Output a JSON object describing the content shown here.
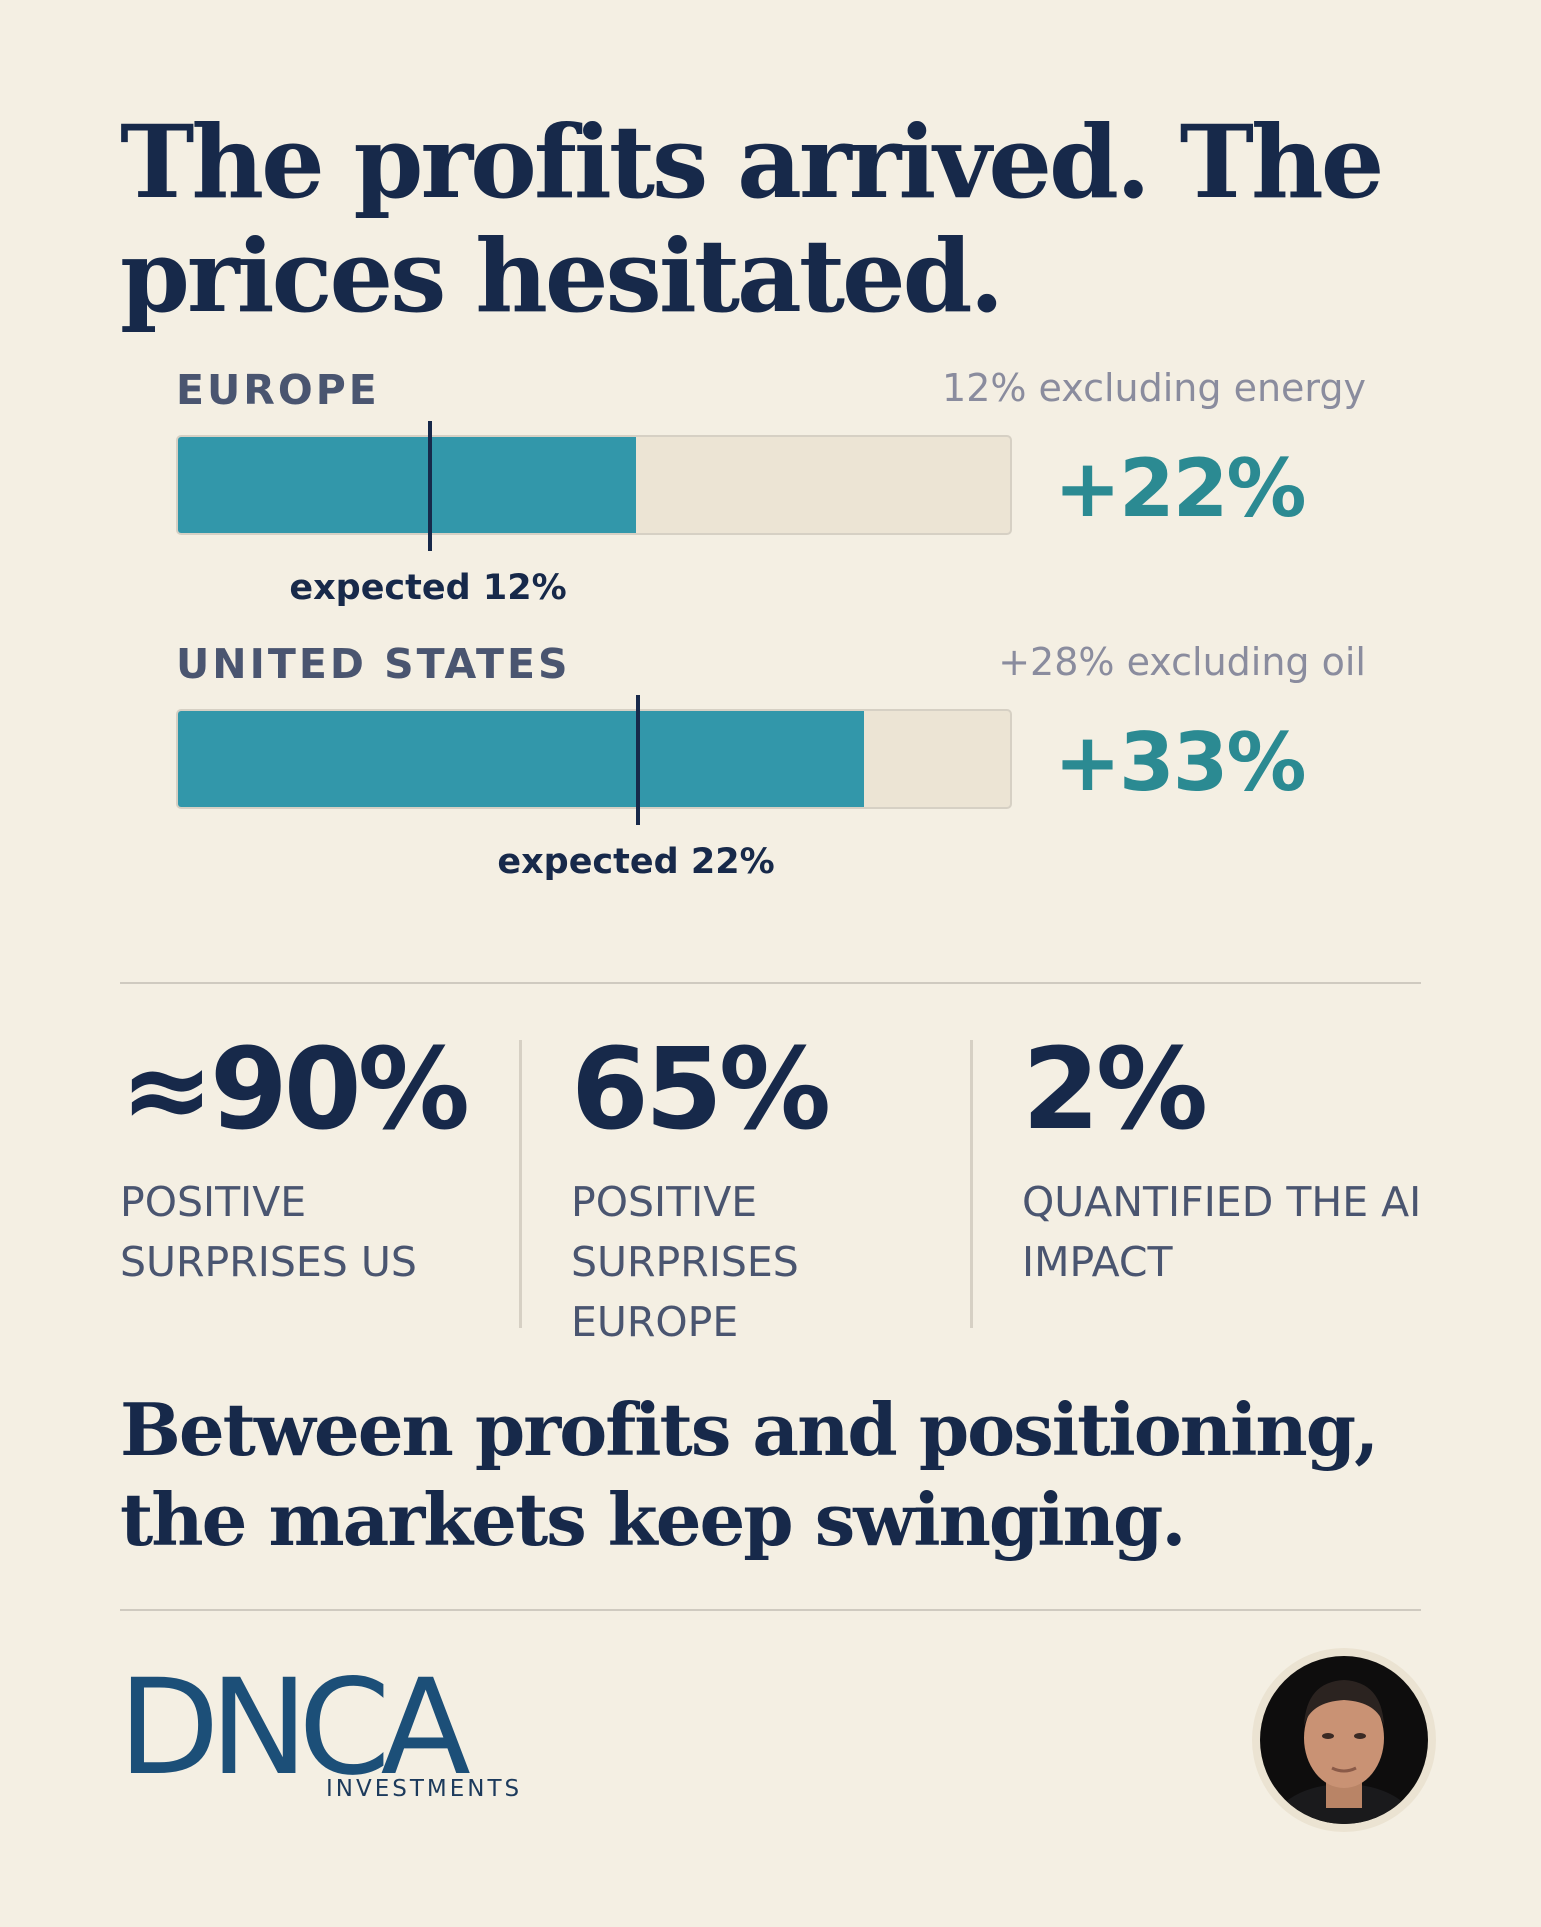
{
  "headline": "The profits arrived. The prices hesitated.",
  "chart_data": {
    "type": "bar",
    "categories": [
      "EUROPE",
      "UNITED STATES"
    ],
    "series": [
      {
        "values": [
          22,
          33
        ]
      }
    ],
    "expected": [
      12,
      22
    ],
    "notes": [
      "12% excluding energy",
      "+28% excluding oil"
    ],
    "value_labels": [
      "+22%",
      "+33%"
    ],
    "expected_labels": [
      "expected 12%",
      "expected 22%"
    ],
    "xlim": [
      0,
      40
    ]
  },
  "stats": [
    {
      "value": "≈90%",
      "label": "POSITIVE SURPRISES US"
    },
    {
      "value": "65%",
      "label": "POSITIVE SURPRISES EUROPE"
    },
    {
      "value": "2%",
      "label": "QUANTIFIED THE AI IMPACT"
    }
  ],
  "closing": "Between profits and positioning, the markets keep swinging.",
  "brand": {
    "logo_text": "DNCA",
    "logo_subtitle": "INVESTMENTS"
  },
  "colors": {
    "background": "#f4efe3",
    "navy": "#17294a",
    "teal_bar": "#3297aa",
    "teal_text": "#2b8a92",
    "muted": "#8a8c9e",
    "track": "#ece4d4"
  },
  "icons": [
    "portrait-avatar"
  ]
}
